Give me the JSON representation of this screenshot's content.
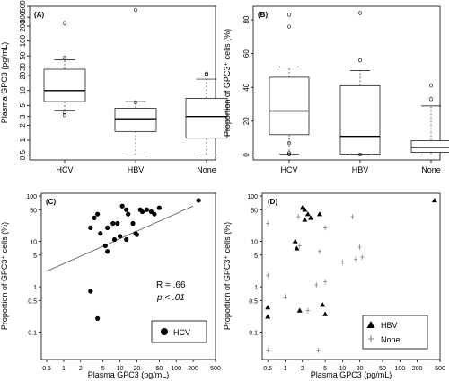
{
  "chart_data": [
    {
      "panel": "(A)",
      "type": "box",
      "ylabel": "Plasma GPC3 (pg/mL)",
      "yscale": "log",
      "ylim": [
        0.4,
        500
      ],
      "yticks": [
        "500",
        "300",
        "200",
        "100",
        "50",
        "30",
        "20",
        "10",
        "5",
        "3",
        "2",
        "1",
        "0.5"
      ],
      "categories": [
        "HCV",
        "HBV",
        "None"
      ],
      "boxes": [
        {
          "q1": 6,
          "median": 10,
          "q3": 27,
          "whisker_low": 4,
          "whisker_high": 42,
          "outliers": [
            230,
            46,
            3.6,
            3.2
          ]
        },
        {
          "q1": 1.5,
          "median": 2.7,
          "q3": 4.4,
          "whisker_low": 0.5,
          "whisker_high": 6,
          "outliers": [
            420,
            5.8
          ]
        },
        {
          "q1": 1.1,
          "median": 3,
          "q3": 7,
          "whisker_low": 0.5,
          "whisker_high": 17,
          "outliers": [
            22,
            21
          ]
        }
      ]
    },
    {
      "panel": "(B)",
      "type": "box",
      "ylabel": "Proportion of GPC3⁺ cells (%)",
      "yscale": "linear",
      "ylim": [
        -3,
        88
      ],
      "yticks": [
        "0",
        "20",
        "40",
        "60",
        "80"
      ],
      "categories": [
        "HCV",
        "HBV",
        "None"
      ],
      "boxes": [
        {
          "q1": 12,
          "median": 26,
          "q3": 46,
          "whisker_low": 0.5,
          "whisker_high": 52,
          "outliers": [
            83,
            76,
            7,
            1,
            0.3
          ]
        },
        {
          "q1": 0.5,
          "median": 11,
          "q3": 41,
          "whisker_low": 0,
          "whisker_high": 50,
          "outliers": [
            84,
            56,
            0.2
          ]
        },
        {
          "q1": 1.5,
          "median": 4.5,
          "q3": 8.5,
          "whisker_low": 0,
          "whisker_high": 29,
          "outliers": [
            41,
            33
          ]
        }
      ]
    },
    {
      "panel": "(C)",
      "type": "scatter",
      "xlabel": "Plasma GPC3 (pg/mL)",
      "ylabel": "Proportion of GPC3⁺ cells (%)",
      "xscale": "log",
      "yscale": "log",
      "xlim": [
        0.4,
        500
      ],
      "ylim": [
        0.025,
        115
      ],
      "xticks": [
        "0.5",
        "1",
        "2",
        "5",
        "10",
        "20",
        "50",
        "100",
        "200",
        "500"
      ],
      "yticks": [
        "0.1",
        "0.5",
        "1",
        "5",
        "10",
        "50",
        "100"
      ],
      "annotation": {
        "r": "R = .66",
        "p": "p < .01"
      },
      "legend": [
        {
          "marker": "circle",
          "label": "HCV"
        }
      ],
      "fit_line": {
        "x": [
          0.5,
          200
        ],
        "y": [
          2.2,
          60
        ]
      },
      "series": [
        {
          "name": "HCV",
          "points": [
            [
              3,
              0.8
            ],
            [
              4,
              0.2
            ],
            [
              3,
              20
            ],
            [
              4,
              40
            ],
            [
              3.5,
              33
            ],
            [
              4.5,
              15
            ],
            [
              6,
              20
            ],
            [
              5.5,
              8
            ],
            [
              6,
              6
            ],
            [
              7.5,
              25
            ],
            [
              9,
              25
            ],
            [
              8,
              11
            ],
            [
              10,
              13
            ],
            [
              11,
              60
            ],
            [
              13,
              11
            ],
            [
              13,
              50
            ],
            [
              14,
              40
            ],
            [
              17,
              25
            ],
            [
              20,
              14
            ],
            [
              19,
              15
            ],
            [
              23,
              50
            ],
            [
              25,
              45
            ],
            [
              30,
              50
            ],
            [
              36,
              45
            ],
            [
              41,
              40
            ],
            [
              50,
              55
            ],
            [
              250,
              80
            ]
          ]
        }
      ]
    },
    {
      "panel": "(D)",
      "type": "scatter",
      "xlabel": "Plasma GPC3 (pg/mL)",
      "ylabel": "Proportion of GPC3⁺ cells (%)",
      "xscale": "log",
      "yscale": "log",
      "xlim": [
        0.4,
        500
      ],
      "ylim": [
        0.025,
        115
      ],
      "xticks": [
        "0.5",
        "1",
        "2",
        "5",
        "10",
        "20",
        "50",
        "100",
        "200",
        "500"
      ],
      "yticks": [
        "0.1",
        "0.5",
        "1",
        "5",
        "10",
        "50",
        "100"
      ],
      "legend": [
        {
          "marker": "triangle",
          "label": "HBV"
        },
        {
          "marker": "plus",
          "label": "None"
        }
      ],
      "series": [
        {
          "name": "HBV",
          "points": [
            [
              0.5,
              0.35
            ],
            [
              0.5,
              0.22
            ],
            [
              1.5,
              10
            ],
            [
              1.6,
              7
            ],
            [
              1.8,
              0.3
            ],
            [
              2,
              55
            ],
            [
              2.2,
              50
            ],
            [
              2.5,
              40
            ],
            [
              2.2,
              30
            ],
            [
              2.8,
              33
            ],
            [
              4,
              40
            ],
            [
              4.5,
              0.4
            ],
            [
              5,
              0.25
            ],
            [
              400,
              80
            ]
          ]
        },
        {
          "name": "None",
          "points": [
            [
              0.5,
              25
            ],
            [
              0.5,
              1.8
            ],
            [
              0.5,
              0.04
            ],
            [
              1,
              0.6
            ],
            [
              1.7,
              35
            ],
            [
              1.8,
              8
            ],
            [
              2.5,
              0.3
            ],
            [
              3.5,
              1.1
            ],
            [
              3.8,
              0.04
            ],
            [
              4,
              6
            ],
            [
              5,
              20
            ],
            [
              5,
              1.3
            ],
            [
              10,
              3.5
            ],
            [
              15,
              35
            ],
            [
              17,
              4
            ],
            [
              20,
              7.5
            ],
            [
              22,
              4.5
            ]
          ]
        }
      ]
    }
  ]
}
